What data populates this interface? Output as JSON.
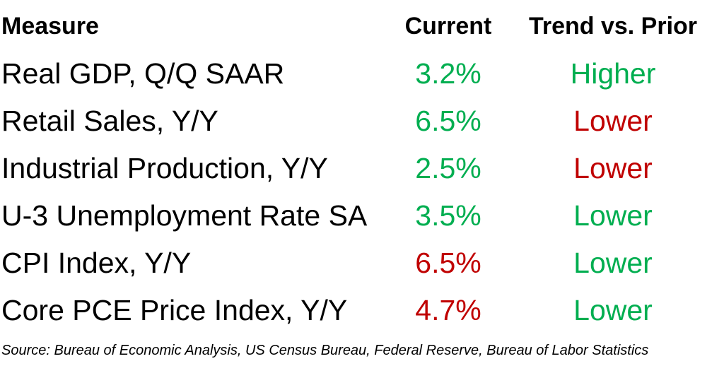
{
  "colors": {
    "positive": "#00AE50",
    "negative": "#C00000",
    "text": "#000000",
    "background": "#FFFFFF"
  },
  "table": {
    "headers": {
      "measure": "Measure",
      "current": "Current",
      "trend": "Trend vs. Prior"
    },
    "rows": [
      {
        "measure": "Real GDP, Q/Q SAAR",
        "current": "3.2%",
        "current_color": "positive",
        "trend": "Higher",
        "trend_color": "positive"
      },
      {
        "measure": "Retail Sales, Y/Y",
        "current": "6.5%",
        "current_color": "positive",
        "trend": "Lower",
        "trend_color": "negative"
      },
      {
        "measure": "Industrial Production, Y/Y",
        "current": "2.5%",
        "current_color": "positive",
        "trend": "Lower",
        "trend_color": "negative"
      },
      {
        "measure": "U-3 Unemployment Rate SA",
        "current": "3.5%",
        "current_color": "positive",
        "trend": "Lower",
        "trend_color": "positive"
      },
      {
        "measure": "CPI Index, Y/Y",
        "current": "6.5%",
        "current_color": "negative",
        "trend": "Lower",
        "trend_color": "positive"
      },
      {
        "measure": "Core PCE Price Index, Y/Y",
        "current": "4.7%",
        "current_color": "negative",
        "trend": "Lower",
        "trend_color": "positive"
      }
    ]
  },
  "source_note": "Source: Bureau of Economic Analysis, US Census Bureau, Federal Reserve, Bureau of Labor Statistics",
  "chart_data": {
    "type": "table",
    "title": "",
    "columns": [
      "Measure",
      "Current",
      "Trend vs. Prior"
    ],
    "rows": [
      [
        "Real GDP, Q/Q SAAR",
        "3.2%",
        "Higher"
      ],
      [
        "Retail Sales, Y/Y",
        "6.5%",
        "Lower"
      ],
      [
        "Industrial Production, Y/Y",
        "2.5%",
        "Lower"
      ],
      [
        "U-3 Unemployment Rate SA",
        "3.5%",
        "Lower"
      ],
      [
        "CPI Index, Y/Y",
        "6.5%",
        "Lower"
      ],
      [
        "Core PCE Price Index, Y/Y",
        "4.7%",
        "Lower"
      ]
    ],
    "cell_color_semantics": {
      "current": [
        "positive",
        "positive",
        "positive",
        "positive",
        "negative",
        "negative"
      ],
      "trend": [
        "positive",
        "negative",
        "negative",
        "positive",
        "positive",
        "positive"
      ]
    },
    "legend_meaning": "green = favorable, dark red = unfavorable",
    "source": "Source: Bureau of Economic Analysis, US Census Bureau, Federal Reserve, Bureau of Labor Statistics"
  }
}
